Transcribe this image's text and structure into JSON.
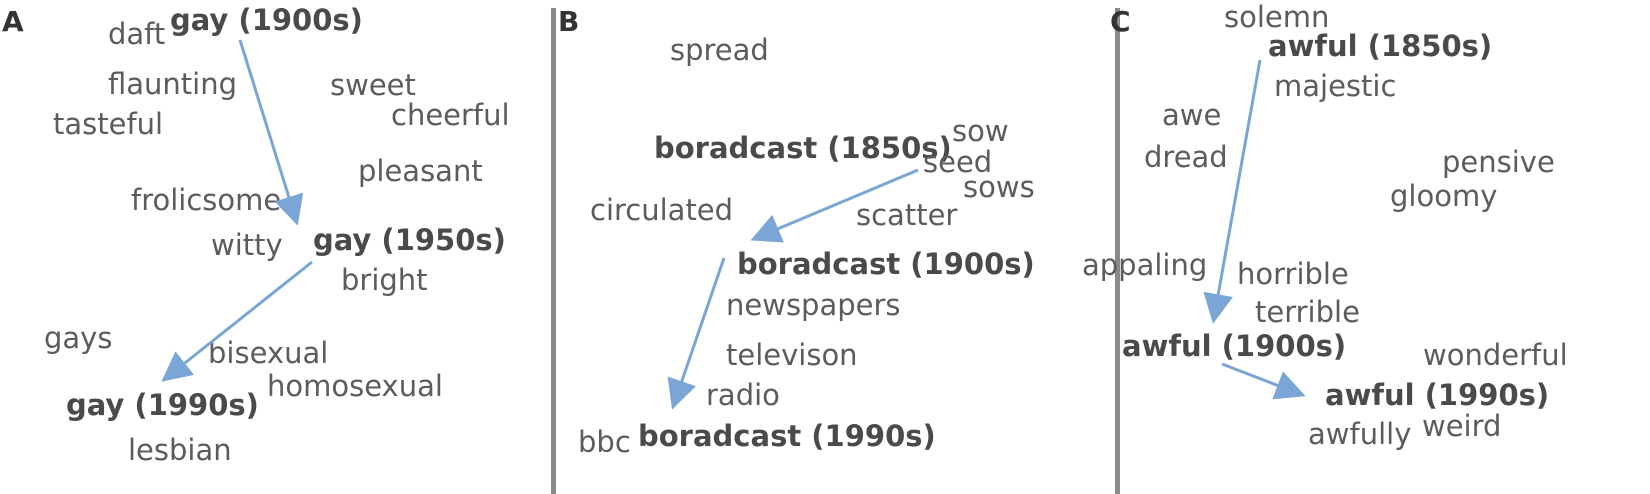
{
  "panels": {
    "a": {
      "label": "A",
      "key_words": [
        "gay (1900s)",
        "gay (1950s)",
        "gay (1990s)"
      ],
      "neighbors": [
        "daft",
        "flaunting",
        "tasteful",
        "sweet",
        "cheerful",
        "pleasant",
        "frolicsome",
        "witty",
        "bright",
        "gays",
        "bisexual",
        "homosexual",
        "lesbian"
      ]
    },
    "b": {
      "label": "B",
      "key_words": [
        "boradcast (1850s)",
        "boradcast (1900s)",
        "boradcast (1990s)"
      ],
      "neighbors": [
        "spread",
        "sow",
        "seed",
        "sows",
        "circulated",
        "scatter",
        "newspapers",
        "televison",
        "radio",
        "bbc"
      ]
    },
    "c": {
      "label": "C",
      "key_words": [
        "awful (1850s)",
        "awful (1900s)",
        "awful (1990s)"
      ],
      "neighbors": [
        "solemn",
        "majestic",
        "awe",
        "dread",
        "pensive",
        "gloomy",
        "appaling",
        "horrible",
        "terrible",
        "wonderful",
        "awfully",
        "weird"
      ]
    }
  },
  "colors": {
    "arrow": "#7aa6d6",
    "divider": "#8a8a8a",
    "word": "#5c5c5c",
    "key": "#4a4a4a"
  }
}
